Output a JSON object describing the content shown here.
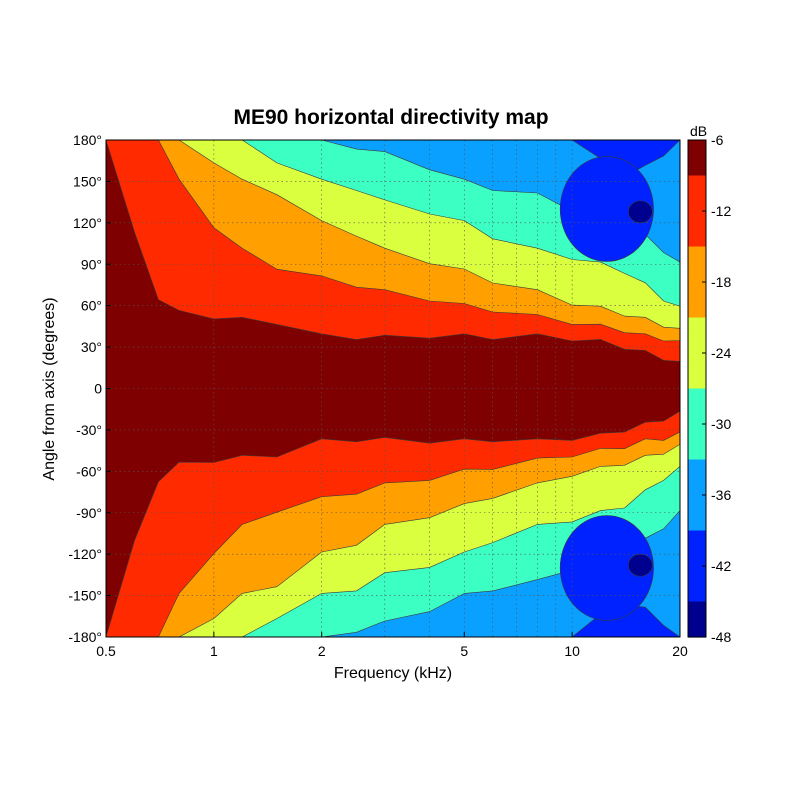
{
  "chart_data": {
    "type": "heatmap",
    "title": "ME90 horizontal directivity map",
    "xlabel": "Frequency (kHz)",
    "ylabel": "Angle from axis (degrees)",
    "x_scale": "log",
    "xlim": [
      0.5,
      20
    ],
    "ylim": [
      -180,
      180
    ],
    "x_ticks": [
      0.5,
      1,
      2,
      5,
      10,
      20
    ],
    "x_tick_labels": [
      "0.5",
      "1",
      "2",
      "5",
      "10",
      "20"
    ],
    "y_ticks": [
      180,
      150,
      120,
      90,
      60,
      30,
      0,
      -30,
      -60,
      -90,
      -120,
      -150,
      -180
    ],
    "y_tick_labels": [
      "180°",
      "150°",
      "120°",
      "90°",
      "60°",
      "30°",
      "0",
      "-30°",
      "-60°",
      "-90°",
      "-120°",
      "-150°",
      "-180°"
    ],
    "grid": true,
    "colorbar": {
      "unit": "dB",
      "range": [
        -48,
        -6
      ],
      "ticks": [
        -6,
        -12,
        -18,
        -24,
        -30,
        -36,
        -42,
        -48
      ]
    },
    "levels": [
      {
        "min": -9,
        "color": "#7f0000"
      },
      {
        "min": -15,
        "color": "#ff2a00"
      },
      {
        "min": -21,
        "color": "#ff9f00"
      },
      {
        "min": -27,
        "color": "#d9ff3e"
      },
      {
        "min": -33,
        "color": "#3cffc3"
      },
      {
        "min": -39,
        "color": "#0aa0ff"
      },
      {
        "min": -45,
        "color": "#0022ff"
      },
      {
        "min": -60,
        "color": "#00008f"
      }
    ],
    "contours_dB": [
      -9,
      -15,
      -21,
      -27,
      -33,
      -39
    ],
    "contours_half_angle_deg": {
      "frequency_kHz": [
        0.5,
        0.6,
        0.7,
        0.8,
        1,
        1.2,
        1.5,
        2,
        2.5,
        3,
        4,
        5,
        6,
        8,
        10,
        12,
        14,
        16,
        18,
        20
      ],
      "-9": [
        180,
        112,
        66,
        55,
        52,
        50,
        48,
        38,
        37,
        37,
        38,
        38,
        37,
        38,
        36,
        34,
        30,
        26,
        22,
        18
      ],
      "-15": [
        180,
        180,
        180,
        150,
        118,
        100,
        88,
        80,
        75,
        70,
        65,
        60,
        57,
        52,
        48,
        45,
        42,
        38,
        36,
        33
      ],
      "-21": [
        180,
        180,
        180,
        180,
        165,
        150,
        142,
        120,
        112,
        100,
        92,
        85,
        78,
        70,
        62,
        58,
        54,
        50,
        46,
        42
      ],
      "-27": [
        180,
        180,
        180,
        180,
        180,
        180,
        165,
        150,
        145,
        135,
        128,
        120,
        110,
        100,
        95,
        90,
        85,
        75,
        65,
        58
      ],
      "-33": [
        180,
        180,
        180,
        180,
        180,
        180,
        180,
        180,
        175,
        170,
        160,
        150,
        145,
        140,
        130,
        120,
        115,
        110,
        100,
        90
      ],
      "-39": [
        180,
        180,
        180,
        180,
        180,
        180,
        180,
        180,
        180,
        180,
        180,
        180,
        180,
        180,
        180,
        165,
        155,
        160,
        170,
        180
      ]
    },
    "islands": [
      {
        "dB": -45,
        "x_kHz": 12.5,
        "angle_deg": 130,
        "rx_kHz_ratio": 1.35,
        "ry_deg": 38
      },
      {
        "dB": -45,
        "x_kHz": 12.5,
        "angle_deg": -130,
        "rx_kHz_ratio": 1.35,
        "ry_deg": 38
      },
      {
        "dB": -51,
        "x_kHz": 15.5,
        "angle_deg": 128,
        "rx_kHz_ratio": 1.08,
        "ry_deg": 8
      },
      {
        "dB": -51,
        "x_kHz": 15.5,
        "angle_deg": -128,
        "rx_kHz_ratio": 1.08,
        "ry_deg": 8
      }
    ]
  }
}
